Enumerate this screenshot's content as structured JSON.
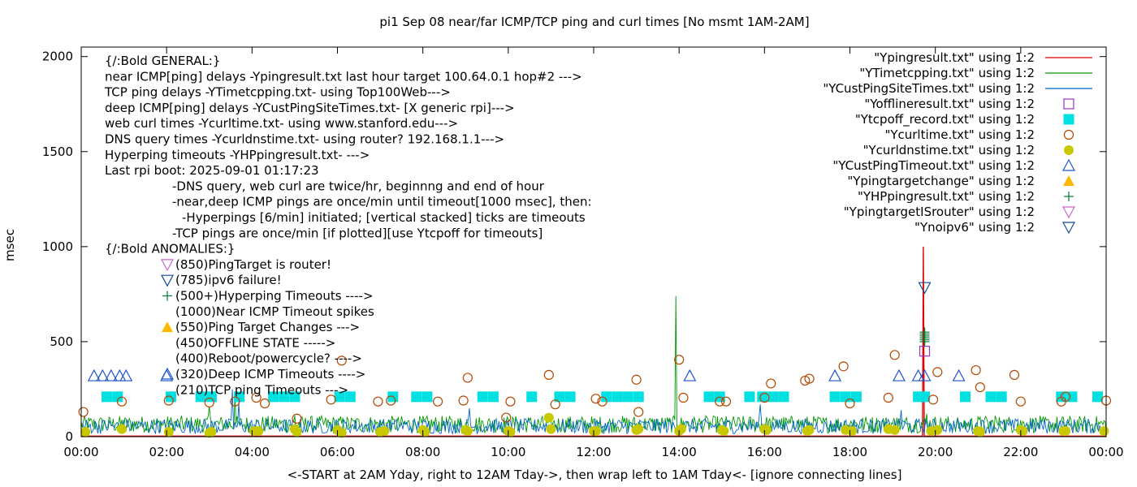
{
  "chart_data": {
    "type": "line",
    "title": "pi1 Sep 08  near/far ICMP/TCP ping and curl times [No msmt 1AM-2AM]",
    "xlabel": "<-START at 2AM Yday, right to 12AM Tday->, then wrap left to 1AM Tday<- [ignore connecting lines]",
    "ylabel": "msec",
    "xlim": [
      0,
      24
    ],
    "ylim": [
      0,
      2050
    ],
    "x_ticks": [
      0,
      2,
      4,
      6,
      8,
      10,
      12,
      14,
      16,
      18,
      20,
      22,
      24
    ],
    "x_tick_labels": [
      "00:00",
      "02:00",
      "04:00",
      "06:00",
      "08:00",
      "10:00",
      "12:00",
      "14:00",
      "16:00",
      "18:00",
      "20:00",
      "22:00",
      "00:00"
    ],
    "y_ticks": [
      0,
      500,
      1000,
      1500,
      2000
    ],
    "y_tick_labels": [
      "0",
      "500",
      "1000",
      "1500",
      "2000"
    ],
    "legend_position": "top-right",
    "colors": {
      "ping": "#dd0000",
      "tcp": "#009900",
      "cust": "#0066cc",
      "offline": "#9933cc",
      "tcpoff": "#00e0e0",
      "curl": "#b34700",
      "dns": "#c8c800",
      "custTimeout": "#2255cc",
      "targetchange": "#ffb800",
      "hp": "#007a33",
      "router": "#cc66cc",
      "ipv6": "#1a4a99"
    },
    "series": [
      {
        "name": "\"Ypingresult.txt\" using 1:2",
        "marker": "line",
        "color": "#dd0000",
        "points": [
          [
            0,
            3
          ],
          [
            2,
            3
          ],
          [
            4,
            3
          ],
          [
            6,
            3
          ],
          [
            8,
            3
          ],
          [
            10,
            3
          ],
          [
            12,
            3
          ],
          [
            14,
            3
          ],
          [
            16,
            3
          ],
          [
            18,
            3
          ],
          [
            19.7,
            3
          ],
          [
            19.72,
            1000
          ],
          [
            19.74,
            3
          ],
          [
            22,
            3
          ],
          [
            24,
            3
          ]
        ]
      },
      {
        "name": "\"YTimetcpping.txt\" using 1:2",
        "marker": "line",
        "color": "#009900",
        "spikes": [
          [
            3.0,
            160
          ],
          [
            3.6,
            220
          ],
          [
            5.0,
            110
          ],
          [
            7.0,
            90
          ],
          [
            8.5,
            80
          ],
          [
            10.2,
            85
          ],
          [
            11.0,
            100
          ],
          [
            13.0,
            70
          ],
          [
            13.92,
            740
          ],
          [
            15.0,
            100
          ],
          [
            16.3,
            85
          ],
          [
            18.1,
            90
          ],
          [
            19.1,
            100
          ],
          [
            19.8,
            120
          ],
          [
            20.6,
            75
          ],
          [
            21.4,
            110
          ],
          [
            22.5,
            80
          ],
          [
            23.4,
            95
          ]
        ]
      },
      {
        "name": "\"YCustPingSiteTimes.txt\" using 1:2",
        "marker": "line",
        "color": "#0066cc",
        "spikes": [
          [
            3.55,
            250
          ],
          [
            3.7,
            180
          ],
          [
            9.1,
            150
          ],
          [
            15.9,
            170
          ],
          [
            19.2,
            140
          ]
        ]
      },
      {
        "name": "\"Yofflineresult.txt\" using 1:2",
        "marker": "open-square",
        "color": "#9933cc",
        "points": [
          [
            19.75,
            450
          ]
        ]
      },
      {
        "name": "\"Ytcpoff_record.txt\" using 1:2",
        "marker": "filled-square",
        "color": "#00e0e0",
        "points": [
          [
            0.6,
            210
          ],
          [
            0.85,
            210
          ],
          [
            2.1,
            210
          ],
          [
            2.8,
            210
          ],
          [
            3.05,
            210
          ],
          [
            3.7,
            210
          ],
          [
            4.5,
            210
          ],
          [
            4.75,
            210
          ],
          [
            5.0,
            210
          ],
          [
            6.05,
            210
          ],
          [
            6.3,
            210
          ],
          [
            7.3,
            210
          ],
          [
            7.85,
            210
          ],
          [
            8.1,
            210
          ],
          [
            9.4,
            210
          ],
          [
            9.65,
            210
          ],
          [
            10.55,
            210
          ],
          [
            11.2,
            210
          ],
          [
            11.45,
            210
          ],
          [
            12.3,
            210
          ],
          [
            12.55,
            210
          ],
          [
            12.8,
            210
          ],
          [
            13.05,
            210
          ],
          [
            14.7,
            210
          ],
          [
            14.95,
            210
          ],
          [
            15.65,
            210
          ],
          [
            15.95,
            210
          ],
          [
            16.2,
            210
          ],
          [
            16.45,
            210
          ],
          [
            17.65,
            210
          ],
          [
            17.9,
            210
          ],
          [
            18.15,
            210
          ],
          [
            19.75,
            210
          ],
          [
            19.6,
            210
          ],
          [
            20.7,
            210
          ],
          [
            21.3,
            210
          ],
          [
            21.55,
            210
          ],
          [
            22.95,
            210
          ],
          [
            23.2,
            210
          ],
          [
            23.8,
            210
          ]
        ]
      },
      {
        "name": "\"Ycurltime.txt\" using 1:2",
        "marker": "open-circle",
        "color": "#b34700",
        "points": [
          [
            0.05,
            130
          ],
          [
            0.95,
            185
          ],
          [
            2.05,
            190
          ],
          [
            3.0,
            180
          ],
          [
            3.6,
            185
          ],
          [
            4.1,
            205
          ],
          [
            4.3,
            175
          ],
          [
            5.05,
            95
          ],
          [
            5.85,
            195
          ],
          [
            6.1,
            400
          ],
          [
            6.95,
            185
          ],
          [
            7.25,
            190
          ],
          [
            8.35,
            185
          ],
          [
            8.95,
            190
          ],
          [
            9.05,
            310
          ],
          [
            9.95,
            100
          ],
          [
            10.05,
            185
          ],
          [
            10.95,
            325
          ],
          [
            11.1,
            170
          ],
          [
            12.05,
            200
          ],
          [
            12.2,
            185
          ],
          [
            13.0,
            300
          ],
          [
            13.05,
            130
          ],
          [
            14.0,
            405
          ],
          [
            14.1,
            205
          ],
          [
            14.95,
            185
          ],
          [
            15.1,
            185
          ],
          [
            16.0,
            205
          ],
          [
            16.15,
            280
          ],
          [
            16.95,
            295
          ],
          [
            17.05,
            305
          ],
          [
            17.85,
            370
          ],
          [
            18.0,
            175
          ],
          [
            18.9,
            205
          ],
          [
            19.05,
            430
          ],
          [
            19.95,
            195
          ],
          [
            20.05,
            340
          ],
          [
            20.95,
            350
          ],
          [
            21.05,
            260
          ],
          [
            21.85,
            325
          ],
          [
            22.0,
            185
          ],
          [
            22.95,
            185
          ],
          [
            23.05,
            210
          ],
          [
            24,
            190
          ]
        ]
      },
      {
        "name": "\"Ycurldnstime.txt\" using 1:2",
        "marker": "filled-circle",
        "color": "#c8c800",
        "points": [
          [
            0.1,
            25
          ],
          [
            0.95,
            40
          ],
          [
            2.05,
            25
          ],
          [
            3.0,
            20
          ],
          [
            3.05,
            25
          ],
          [
            4.05,
            30
          ],
          [
            4.15,
            30
          ],
          [
            5.0,
            40
          ],
          [
            5.05,
            25
          ],
          [
            6.0,
            35
          ],
          [
            6.1,
            20
          ],
          [
            7.0,
            25
          ],
          [
            7.1,
            30
          ],
          [
            8.0,
            35
          ],
          [
            8.05,
            25
          ],
          [
            9.0,
            35
          ],
          [
            9.05,
            30
          ],
          [
            10.0,
            30
          ],
          [
            10.05,
            25
          ],
          [
            10.95,
            100
          ],
          [
            11.0,
            40
          ],
          [
            12.0,
            30
          ],
          [
            12.05,
            30
          ],
          [
            13.0,
            35
          ],
          [
            13.05,
            40
          ],
          [
            14.0,
            30
          ],
          [
            14.05,
            40
          ],
          [
            15.0,
            35
          ],
          [
            15.05,
            30
          ],
          [
            16.0,
            40
          ],
          [
            16.05,
            35
          ],
          [
            17.0,
            30
          ],
          [
            17.05,
            35
          ],
          [
            17.9,
            35
          ],
          [
            18.05,
            30
          ],
          [
            18.9,
            40
          ],
          [
            19.05,
            35
          ],
          [
            19.9,
            30
          ],
          [
            20.05,
            35
          ],
          [
            21.0,
            30
          ],
          [
            21.05,
            25
          ],
          [
            22.0,
            35
          ],
          [
            22.05,
            30
          ],
          [
            23.0,
            30
          ],
          [
            23.05,
            30
          ],
          [
            23.95,
            30
          ]
        ]
      },
      {
        "name": "\"YCustPingTimeout.txt\" using 1:2",
        "marker": "open-triangle-up",
        "color": "#2255cc",
        "points": [
          [
            0.3,
            320
          ],
          [
            0.5,
            320
          ],
          [
            0.7,
            320
          ],
          [
            0.9,
            320
          ],
          [
            1.05,
            320
          ],
          [
            2.0,
            320
          ],
          [
            14.25,
            320
          ],
          [
            17.65,
            320
          ],
          [
            19.15,
            320
          ],
          [
            19.6,
            320
          ],
          [
            19.75,
            320
          ],
          [
            20.55,
            320
          ]
        ]
      },
      {
        "name": "\"Ytcpoff_record.txt\" using 1:2",
        "hidden": true
      },
      {
        "name": "\"Ypingtargetchange\" using 1:2",
        "marker": "filled-triangle-up",
        "color": "#ffb800",
        "points": []
      },
      {
        "name": "\"YHPpingresult.txt\" using 1:2",
        "marker": "plus",
        "color": "#007a33",
        "points": [
          [
            19.75,
            500
          ],
          [
            19.75,
            510
          ],
          [
            19.75,
            520
          ],
          [
            19.75,
            530
          ],
          [
            19.75,
            540
          ],
          [
            19.75,
            550
          ]
        ]
      },
      {
        "name": "\"YpingtargetISrouter\" using 1:2",
        "marker": "open-triangle-down",
        "color": "#cc66cc",
        "points": []
      },
      {
        "name": "\"Ynoipv6\" using 1:2",
        "marker": "open-triangle-down",
        "color": "#1a4a99",
        "points": [
          [
            19.75,
            785
          ]
        ]
      }
    ],
    "legend_entries": [
      {
        "label": "\"Ypingresult.txt\" using 1:2",
        "marker": "line",
        "color": "#dd0000"
      },
      {
        "label": "\"YTimetcpping.txt\" using 1:2",
        "marker": "line",
        "color": "#009900"
      },
      {
        "label": "\"YCustPingSiteTimes.txt\" using 1:2",
        "marker": "line",
        "color": "#0066cc"
      },
      {
        "label": "\"Yofflineresult.txt\" using 1:2",
        "marker": "open-square",
        "color": "#9933cc"
      },
      {
        "label": "\"Ytcpoff_record.txt\" using 1:2",
        "marker": "filled-square",
        "color": "#00e0e0"
      },
      {
        "label": "\"Ycurltime.txt\" using 1:2",
        "marker": "open-circle",
        "color": "#b34700"
      },
      {
        "label": "\"Ycurldnstime.txt\" using 1:2",
        "marker": "filled-circle",
        "color": "#c8c800"
      },
      {
        "label": "\"YCustPingTimeout.txt\" using 1:2",
        "marker": "open-triangle-up",
        "color": "#2255cc"
      },
      {
        "label": "\"Ypingtargetchange\" using 1:2",
        "marker": "filled-triangle-up",
        "color": "#ffb800"
      },
      {
        "label": "\"YHPpingresult.txt\" using 1:2",
        "marker": "plus",
        "color": "#007a33"
      },
      {
        "label": "\"YpingtargetISrouter\" using 1:2",
        "marker": "open-triangle-down",
        "color": "#cc66cc"
      },
      {
        "label": "\"Ynoipv6\" using 1:2",
        "marker": "open-triangle-down",
        "color": "#1a4a99"
      }
    ],
    "annotations": [
      {
        "text": "{/:Bold GENERAL:}",
        "indent": 0
      },
      {
        "text": "near ICMP[ping] delays -Ypingresult.txt last hour target 100.64.0.1 hop#2 --->",
        "indent": 0
      },
      {
        "text": "TCP ping delays -YTimetcpping.txt- using Top100Web--->",
        "indent": 0
      },
      {
        "text": "deep ICMP[ping] delays -YCustPingSiteTimes.txt- [X generic rpi]--->",
        "indent": 0
      },
      {
        "text": "web curl times -Ycurltime.txt- using www.stanford.edu--->",
        "indent": 0
      },
      {
        "text": "DNS query times -Ycurldnstime.txt- using router? 192.168.1.1--->",
        "indent": 0
      },
      {
        "text": "Hyperping timeouts -YHPpingresult.txt- --->",
        "indent": 0
      },
      {
        "text": "Last rpi boot: 2025-09-01 01:17:23",
        "indent": 0
      },
      {
        "text": "-DNS query, web curl are twice/hr, beginnng and end of hour",
        "indent": 1
      },
      {
        "text": "-near,deep ICMP pings are once/min until timeout[1000 msec], then:",
        "indent": 1
      },
      {
        "text": "-Hyperpings [6/min] initiated; [vertical stacked] ticks are timeouts",
        "indent": 2
      },
      {
        "text": "-TCP pings are once/min [if plotted][use Ytcpoff for timeouts]",
        "indent": 1
      },
      {
        "text": "{/:Bold ANOMALIES:}",
        "indent": 0
      },
      {
        "text": "(850)PingTarget is router!",
        "indent": 1,
        "marker": "open-triangle-down",
        "color": "#cc66cc"
      },
      {
        "text": "(785)ipv6 failure!",
        "indent": 1,
        "marker": "open-triangle-down",
        "color": "#1a4a99"
      },
      {
        "text": "(500+)Hyperping Timeouts ---->",
        "indent": 1,
        "marker": "plus",
        "color": "#007a33"
      },
      {
        "text": "(1000)Near ICMP Timeout spikes",
        "indent": 1
      },
      {
        "text": "(550)Ping Target Changes --->",
        "indent": 1,
        "marker": "filled-triangle-up",
        "color": "#ffb800"
      },
      {
        "text": "(450)OFFLINE STATE ----->",
        "indent": 1
      },
      {
        "text": "(400)Reboot/powercycle? ---->",
        "indent": 1
      },
      {
        "text": "(320)Deep ICMP Timeouts ---->",
        "indent": 1,
        "marker": "open-triangle-up",
        "color": "#2255cc"
      },
      {
        "text": "(210)TCP ping Timeouts --->",
        "indent": 1
      }
    ]
  }
}
